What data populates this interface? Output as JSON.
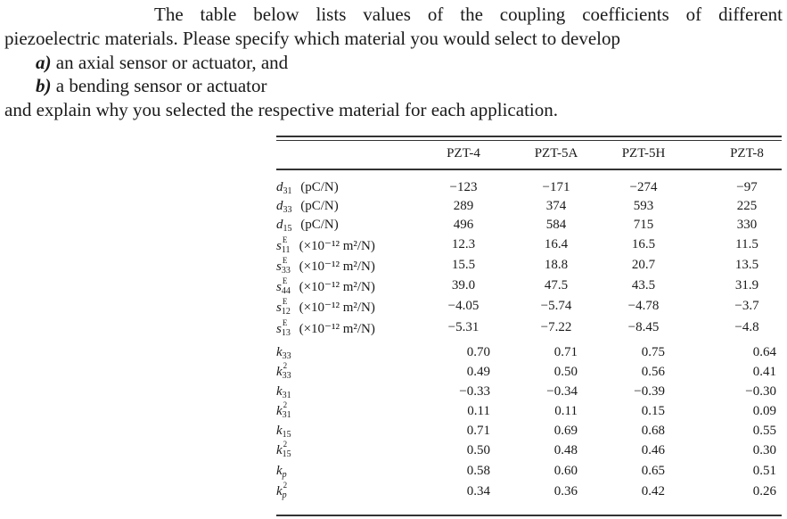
{
  "prompt": {
    "line1": "The table below lists values of the coupling coefficients of different",
    "line2": "piezoelectric materials. Please specify which material you would select to develop",
    "item_a_label": "a)",
    "item_a_text": " an axial sensor or actuator, and",
    "item_b_label": "b)",
    "item_b_text": " a bending sensor or actuator",
    "line5": "and explain why you selected the respective material for each application."
  },
  "table": {
    "columns": [
      "PZT-4",
      "PZT-5A",
      "PZT-5H",
      "PZT-8"
    ],
    "rows": [
      {
        "sym": "d",
        "sub": "31",
        "sup": "",
        "unit": " (pC/N)",
        "values": [
          "−123",
          "−171",
          "−274",
          "−97"
        ]
      },
      {
        "sym": "d",
        "sub": "33",
        "sup": "",
        "unit": " (pC/N)",
        "values": [
          "289",
          "374",
          "593",
          "225"
        ]
      },
      {
        "sym": "d",
        "sub": "15",
        "sup": "",
        "unit": " (pC/N)",
        "values": [
          "496",
          "584",
          "715",
          "330"
        ]
      },
      {
        "sym": "s",
        "sub": "11",
        "sup": "E",
        "unit": " (×10⁻¹² m²/N)",
        "values": [
          "12.3",
          "16.4",
          "16.5",
          "11.5"
        ]
      },
      {
        "sym": "s",
        "sub": "33",
        "sup": "E",
        "unit": " (×10⁻¹² m²/N)",
        "values": [
          "15.5",
          "18.8",
          "20.7",
          "13.5"
        ]
      },
      {
        "sym": "s",
        "sub": "44",
        "sup": "E",
        "unit": " (×10⁻¹² m²/N)",
        "values": [
          "39.0",
          "47.5",
          "43.5",
          "31.9"
        ]
      },
      {
        "sym": "s",
        "sub": "12",
        "sup": "E",
        "unit": " (×10⁻¹² m²/N)",
        "values": [
          "−4.05",
          "−5.74",
          "−4.78",
          "−3.7"
        ]
      },
      {
        "sym": "s",
        "sub": "13",
        "sup": "E",
        "unit": " (×10⁻¹² m²/N)",
        "values": [
          "−5.31",
          "−7.22",
          "−8.45",
          "−4.8"
        ]
      },
      {
        "sym": "k",
        "sub": "33",
        "sup": "",
        "unit": "",
        "values": [
          "0.70",
          "0.71",
          "0.75",
          "0.64"
        ]
      },
      {
        "sym": "k",
        "sub": "33",
        "sup": "2",
        "unit": "",
        "values": [
          "0.49",
          "0.50",
          "0.56",
          "0.41"
        ]
      },
      {
        "sym": "k",
        "sub": "31",
        "sup": "",
        "unit": "",
        "values": [
          "−0.33",
          "−0.34",
          "−0.39",
          "−0.30"
        ]
      },
      {
        "sym": "k",
        "sub": "31",
        "sup": "2",
        "unit": "",
        "values": [
          "0.11",
          "0.11",
          "0.15",
          "0.09"
        ]
      },
      {
        "sym": "k",
        "sub": "15",
        "sup": "",
        "unit": "",
        "values": [
          "0.71",
          "0.69",
          "0.68",
          "0.55"
        ]
      },
      {
        "sym": "k",
        "sub": "15",
        "sup": "2",
        "unit": "",
        "values": [
          "0.50",
          "0.48",
          "0.46",
          "0.30"
        ]
      },
      {
        "sym": "k",
        "sub": "p",
        "sup": "",
        "unit": "",
        "values": [
          "0.58",
          "0.60",
          "0.65",
          "0.51"
        ]
      },
      {
        "sym": "k",
        "sub": "p",
        "sup": "2",
        "unit": "",
        "values": [
          "0.34",
          "0.36",
          "0.42",
          "0.26"
        ]
      }
    ]
  }
}
